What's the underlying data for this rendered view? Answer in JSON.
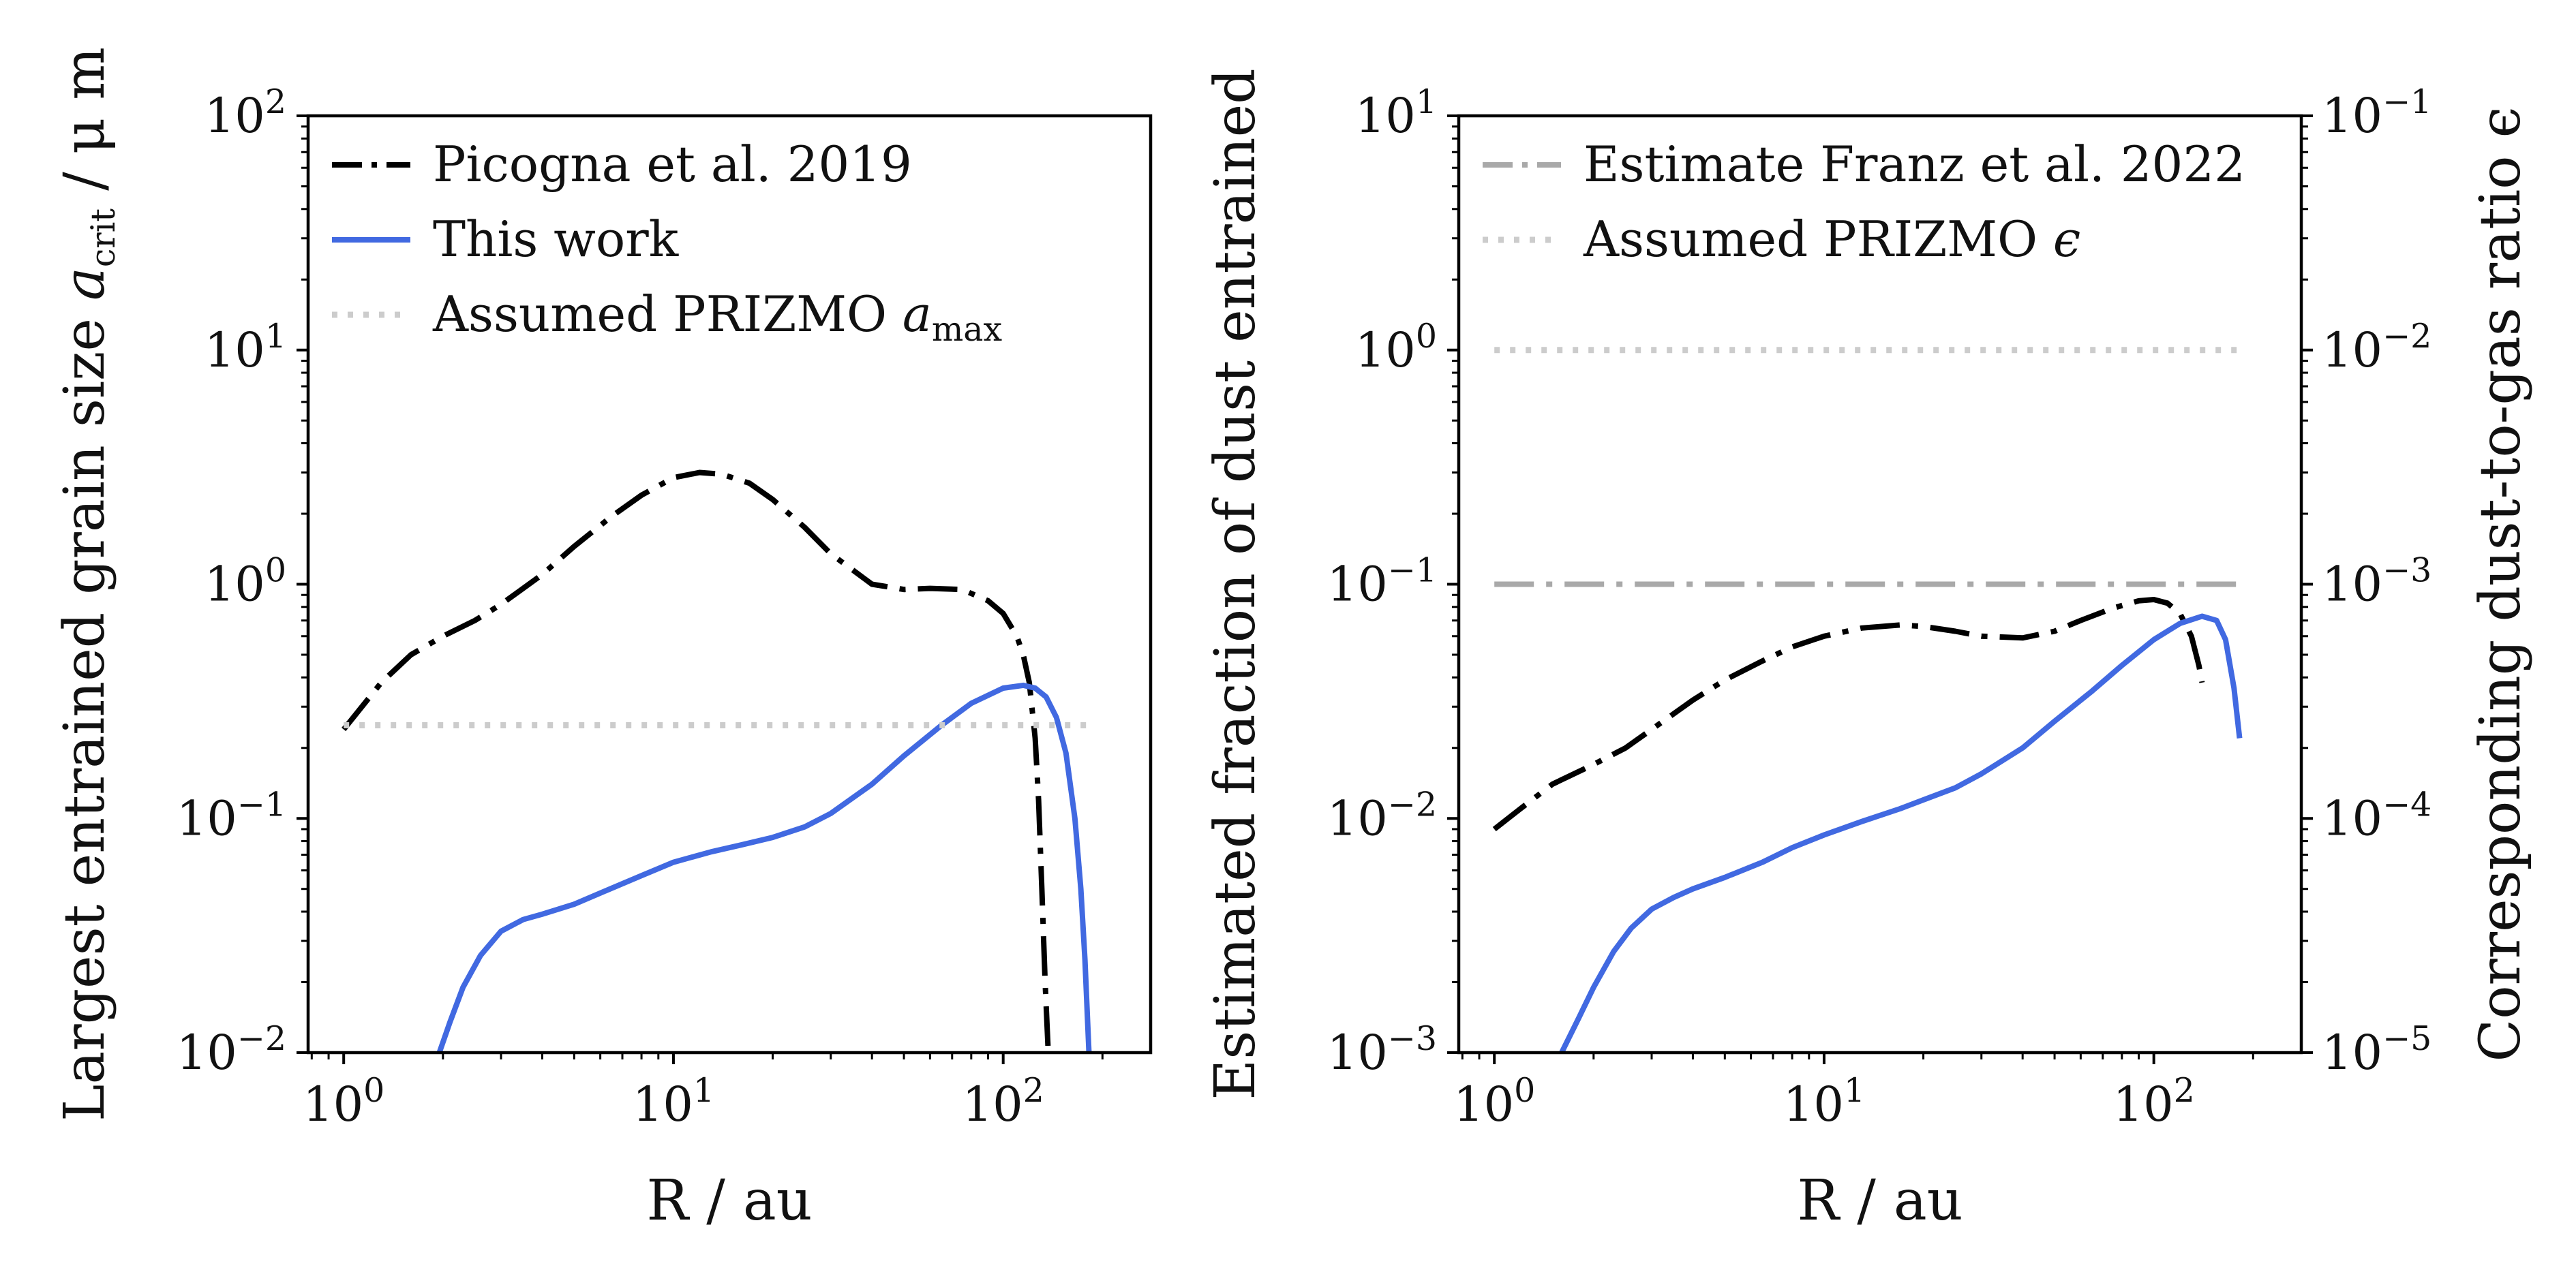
{
  "chart_data": [
    {
      "type": "line",
      "x_scale": "log",
      "y_scale": "log",
      "xlabel": "R / au",
      "ylabel": "Largest entrained grain size a_crit / μm",
      "ylabel_parts": {
        "main": "Largest entrained grain size ",
        "sym": "a",
        "sub": "crit",
        "tail": " / μ m"
      },
      "xlim": [
        0.78,
        280
      ],
      "ylim": [
        0.01,
        100
      ],
      "x_ticks": [
        {
          "base": "10",
          "exp": "0"
        },
        {
          "base": "10",
          "exp": "1"
        },
        {
          "base": "10",
          "exp": "2"
        }
      ],
      "y_ticks": [
        {
          "base": "10",
          "exp": "−2"
        },
        {
          "base": "10",
          "exp": "−1"
        },
        {
          "base": "10",
          "exp": "0"
        },
        {
          "base": "10",
          "exp": "1"
        },
        {
          "base": "10",
          "exp": "2"
        }
      ],
      "legend_position": "top-left",
      "series": [
        {
          "name": "Picogna et al. 2019",
          "style": "dashdot",
          "color": "#000000",
          "x": [
            1.0,
            1.3,
            1.6,
            2.0,
            2.5,
            3.0,
            4.0,
            5.0,
            6.5,
            8.0,
            10.0,
            12.0,
            14.0,
            17.0,
            20.0,
            25.0,
            30.0,
            40.0,
            50.0,
            60.0,
            75.0,
            90.0,
            100.0,
            110.0,
            115.0,
            120.0,
            125.0,
            128.0,
            131.0,
            134.0,
            137.0
          ],
          "y": [
            0.24,
            0.38,
            0.5,
            0.6,
            0.7,
            0.82,
            1.1,
            1.45,
            1.95,
            2.4,
            2.85,
            3.0,
            2.95,
            2.7,
            2.3,
            1.75,
            1.35,
            1.0,
            0.95,
            0.96,
            0.95,
            0.85,
            0.75,
            0.6,
            0.5,
            0.38,
            0.22,
            0.12,
            0.05,
            0.02,
            0.01
          ]
        },
        {
          "name": "This work",
          "style": "solid",
          "color": "#4169e1",
          "x": [
            1.95,
            2.1,
            2.3,
            2.6,
            3.0,
            3.5,
            4.0,
            5.0,
            6.0,
            8.0,
            10.0,
            13.0,
            16.0,
            20.0,
            25.0,
            30.0,
            40.0,
            50.0,
            65.0,
            80.0,
            100.0,
            115.0,
            125.0,
            135.0,
            145.0,
            155.0,
            165.0,
            172.0,
            177.0,
            182.0
          ],
          "y": [
            0.01,
            0.0135,
            0.019,
            0.026,
            0.033,
            0.037,
            0.039,
            0.043,
            0.048,
            0.057,
            0.065,
            0.072,
            0.077,
            0.083,
            0.092,
            0.105,
            0.14,
            0.185,
            0.25,
            0.31,
            0.36,
            0.37,
            0.36,
            0.33,
            0.27,
            0.19,
            0.1,
            0.05,
            0.025,
            0.01
          ]
        },
        {
          "name": "Assumed PRIZMO a_max",
          "legend_parts": {
            "main": "Assumed PRIZMO ",
            "sym": "a",
            "sub": "max"
          },
          "style": "dotted",
          "color": "#cccccc",
          "x": [
            1.0,
            190.0
          ],
          "y": [
            0.25,
            0.25
          ]
        }
      ]
    },
    {
      "type": "line",
      "x_scale": "log",
      "y_scale": "log",
      "xlabel": "R / au",
      "ylabel": "Estimated fraction of dust entrained",
      "ylabel_right": "Corresponding dust-to-gas ratio ϵ",
      "xlim": [
        0.78,
        280
      ],
      "ylim": [
        0.001,
        10
      ],
      "ylim_right": [
        1e-05,
        0.1
      ],
      "x_ticks": [
        {
          "base": "10",
          "exp": "0"
        },
        {
          "base": "10",
          "exp": "1"
        },
        {
          "base": "10",
          "exp": "2"
        }
      ],
      "y_ticks": [
        {
          "base": "10",
          "exp": "−3"
        },
        {
          "base": "10",
          "exp": "−2"
        },
        {
          "base": "10",
          "exp": "−1"
        },
        {
          "base": "10",
          "exp": "0"
        },
        {
          "base": "10",
          "exp": "1"
        }
      ],
      "y_ticks_right": [
        {
          "base": "10",
          "exp": "−5"
        },
        {
          "base": "10",
          "exp": "−4"
        },
        {
          "base": "10",
          "exp": "−3"
        },
        {
          "base": "10",
          "exp": "−2"
        },
        {
          "base": "10",
          "exp": "−1"
        }
      ],
      "legend_position": "top-left",
      "series": [
        {
          "name": "Picogna et al. 2019",
          "style": "dashdot",
          "color": "#000000",
          "in_legend": false,
          "x": [
            1.0,
            1.2,
            1.5,
            2.0,
            2.5,
            3.0,
            4.0,
            5.0,
            6.5,
            8.0,
            10.0,
            13.0,
            17.0,
            20.0,
            25.0,
            30.0,
            40.0,
            50.0,
            60.0,
            75.0,
            90.0,
            100.0,
            110.0,
            120.0,
            130.0,
            137.0,
            140.0
          ],
          "y": [
            0.009,
            0.011,
            0.014,
            0.017,
            0.02,
            0.024,
            0.032,
            0.039,
            0.047,
            0.054,
            0.06,
            0.065,
            0.067,
            0.066,
            0.063,
            0.06,
            0.059,
            0.063,
            0.07,
            0.079,
            0.085,
            0.086,
            0.083,
            0.075,
            0.06,
            0.045,
            0.038
          ]
        },
        {
          "name": "This work",
          "style": "solid",
          "color": "#4169e1",
          "in_legend": false,
          "x": [
            1.6,
            1.8,
            2.0,
            2.3,
            2.6,
            3.0,
            3.5,
            4.0,
            5.0,
            6.5,
            8.0,
            10.0,
            13.0,
            17.0,
            20.0,
            25.0,
            30.0,
            40.0,
            50.0,
            65.0,
            80.0,
            100.0,
            120.0,
            140.0,
            155.0,
            165.0,
            175.0,
            182.0
          ],
          "y": [
            0.001,
            0.0014,
            0.0019,
            0.0027,
            0.0034,
            0.0041,
            0.0046,
            0.005,
            0.0056,
            0.0065,
            0.0075,
            0.0085,
            0.0097,
            0.011,
            0.012,
            0.0135,
            0.0155,
            0.02,
            0.026,
            0.035,
            0.045,
            0.058,
            0.068,
            0.073,
            0.07,
            0.058,
            0.036,
            0.022
          ]
        },
        {
          "name": "Estimate Franz et al. 2022",
          "style": "dashdot",
          "color": "#a9a9a9",
          "x": [
            1.0,
            190.0
          ],
          "y": [
            0.1,
            0.1
          ]
        },
        {
          "name": "Assumed PRIZMO ϵ",
          "legend_parts": {
            "main": "Assumed PRIZMO ",
            "sym": "ϵ"
          },
          "style": "dotted",
          "color": "#cccccc",
          "x": [
            1.0,
            190.0
          ],
          "y": [
            1.0,
            1.0
          ]
        }
      ]
    }
  ]
}
